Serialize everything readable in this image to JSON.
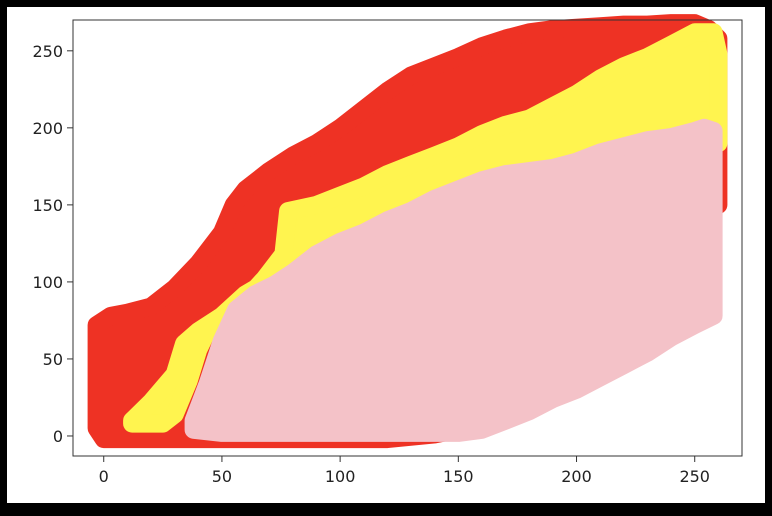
{
  "chart_data": {
    "type": "scatter",
    "title": "",
    "xlabel": "",
    "ylabel": "",
    "xlim": [
      -13,
      270
    ],
    "ylim": [
      -13,
      270
    ],
    "xticks": [
      0,
      50,
      100,
      150,
      200,
      250
    ],
    "yticks": [
      0,
      50,
      100,
      150,
      200,
      250
    ],
    "xtick_labels": [
      "0",
      "50",
      "100",
      "150",
      "200",
      "250"
    ],
    "ytick_labels": [
      "0",
      "50",
      "100",
      "150",
      "200",
      "250"
    ],
    "grid": false,
    "legend": "none",
    "series": [
      {
        "color": "#EE3224",
        "upper": [
          [
            -3,
            62
          ],
          [
            -3,
            72
          ],
          [
            3,
            78
          ],
          [
            10,
            80
          ],
          [
            20,
            84
          ],
          [
            30,
            96
          ],
          [
            40,
            112
          ],
          [
            50,
            132
          ],
          [
            55,
            150
          ],
          [
            60,
            160
          ],
          [
            70,
            172
          ],
          [
            80,
            182
          ],
          [
            90,
            190
          ],
          [
            100,
            200
          ],
          [
            110,
            212
          ],
          [
            120,
            224
          ],
          [
            130,
            234
          ],
          [
            140,
            240
          ],
          [
            150,
            246
          ],
          [
            160,
            253
          ],
          [
            170,
            258
          ],
          [
            180,
            262
          ],
          [
            190,
            264
          ],
          [
            200,
            265
          ],
          [
            210,
            266
          ],
          [
            220,
            267
          ],
          [
            230,
            267
          ],
          [
            240,
            268
          ],
          [
            250,
            268
          ],
          [
            256,
            264
          ],
          [
            260,
            258
          ]
        ],
        "lower": [
          [
            260,
            150
          ],
          [
            250,
            150
          ],
          [
            240,
            120
          ],
          [
            220,
            100
          ],
          [
            200,
            70
          ],
          [
            180,
            40
          ],
          [
            160,
            12
          ],
          [
            150,
            4
          ],
          [
            140,
            1
          ],
          [
            120,
            -2
          ],
          [
            100,
            -2
          ],
          [
            80,
            -2
          ],
          [
            60,
            -2
          ],
          [
            40,
            -2
          ],
          [
            20,
            -2
          ],
          [
            0,
            -2
          ],
          [
            -3,
            5
          ]
        ]
      },
      {
        "color": "#FFF44F",
        "upper": [
          [
            12,
            10
          ],
          [
            20,
            22
          ],
          [
            30,
            40
          ],
          [
            34,
            60
          ],
          [
            40,
            68
          ],
          [
            48,
            76
          ],
          [
            56,
            84
          ],
          [
            62,
            92
          ],
          [
            68,
            102
          ],
          [
            76,
            118
          ],
          [
            78,
            146
          ],
          [
            90,
            150
          ],
          [
            100,
            156
          ],
          [
            110,
            162
          ],
          [
            120,
            170
          ],
          [
            130,
            176
          ],
          [
            140,
            182
          ],
          [
            150,
            188
          ],
          [
            160,
            196
          ],
          [
            170,
            202
          ],
          [
            180,
            206
          ],
          [
            190,
            214
          ],
          [
            200,
            222
          ],
          [
            210,
            232
          ],
          [
            220,
            240
          ],
          [
            230,
            246
          ],
          [
            240,
            254
          ],
          [
            250,
            262
          ],
          [
            258,
            262
          ],
          [
            260,
            248
          ]
        ],
        "lower": [
          [
            260,
            190
          ],
          [
            250,
            200
          ],
          [
            240,
            194
          ],
          [
            220,
            178
          ],
          [
            200,
            168
          ],
          [
            180,
            162
          ],
          [
            160,
            154
          ],
          [
            140,
            146
          ],
          [
            120,
            136
          ],
          [
            100,
            126
          ],
          [
            80,
            110
          ],
          [
            60,
            92
          ],
          [
            50,
            78
          ],
          [
            45,
            72
          ],
          [
            40,
            56
          ],
          [
            36,
            36
          ],
          [
            30,
            14
          ],
          [
            25,
            8
          ],
          [
            12,
            8
          ]
        ]
      },
      {
        "color": "#F4C2C8",
        "upper": [
          [
            38,
            10
          ],
          [
            44,
            34
          ],
          [
            50,
            62
          ],
          [
            56,
            82
          ],
          [
            64,
            92
          ],
          [
            72,
            98
          ],
          [
            80,
            106
          ],
          [
            90,
            118
          ],
          [
            100,
            126
          ],
          [
            110,
            132
          ],
          [
            120,
            140
          ],
          [
            130,
            146
          ],
          [
            140,
            154
          ],
          [
            150,
            160
          ],
          [
            160,
            166
          ],
          [
            170,
            170
          ],
          [
            180,
            172
          ],
          [
            190,
            174
          ],
          [
            200,
            178
          ],
          [
            210,
            184
          ],
          [
            220,
            188
          ],
          [
            230,
            192
          ],
          [
            240,
            194
          ],
          [
            250,
            198
          ],
          [
            254,
            200
          ],
          [
            258,
            198
          ],
          [
            258,
            160
          ]
        ],
        "lower": [
          [
            258,
            78
          ],
          [
            250,
            72
          ],
          [
            240,
            64
          ],
          [
            230,
            54
          ],
          [
            220,
            46
          ],
          [
            210,
            38
          ],
          [
            200,
            30
          ],
          [
            190,
            24
          ],
          [
            180,
            16
          ],
          [
            170,
            10
          ],
          [
            160,
            4
          ],
          [
            150,
            2
          ],
          [
            130,
            2
          ],
          [
            110,
            2
          ],
          [
            90,
            2
          ],
          [
            70,
            2
          ],
          [
            50,
            2
          ],
          [
            38,
            4
          ]
        ]
      }
    ]
  }
}
